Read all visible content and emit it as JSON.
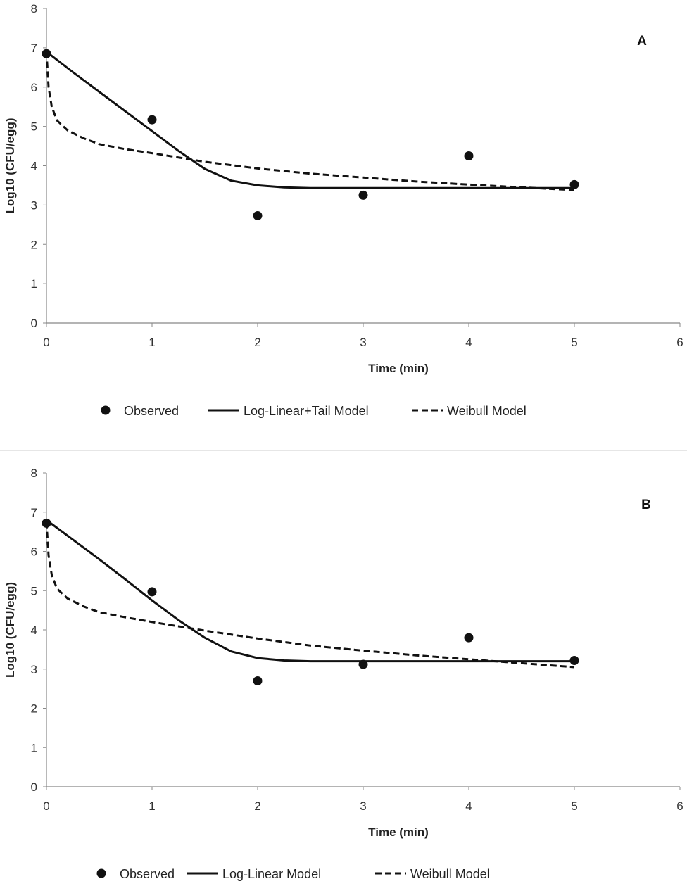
{
  "chart_data": [
    {
      "type": "scatter",
      "panel_label": "A",
      "xlabel": "Time (min)",
      "ylabel": "Log10 (CFU/egg)",
      "xlim": [
        0,
        6
      ],
      "ylim": [
        0,
        8
      ],
      "x_ticks": [
        0,
        1,
        2,
        3,
        4,
        5,
        6
      ],
      "y_ticks": [
        0,
        1,
        2,
        3,
        4,
        5,
        6,
        7,
        8
      ],
      "grid": false,
      "legend_position": "bottom",
      "series": [
        {
          "name": "Observed",
          "kind": "points",
          "x": [
            0,
            1,
            2,
            3,
            4,
            5
          ],
          "y": [
            6.85,
            5.17,
            2.73,
            3.25,
            4.25,
            3.52
          ]
        },
        {
          "name": "Log-Linear+Tail Model",
          "kind": "solid-line",
          "x": [
            0,
            0.25,
            0.5,
            0.75,
            1.0,
            1.25,
            1.5,
            1.75,
            2.0,
            2.25,
            2.5,
            3,
            4,
            5
          ],
          "y": [
            6.9,
            6.38,
            5.88,
            5.38,
            4.88,
            4.38,
            3.92,
            3.62,
            3.5,
            3.45,
            3.43,
            3.43,
            3.43,
            3.43
          ]
        },
        {
          "name": "Weibull Model",
          "kind": "dashed-line",
          "x": [
            0,
            0.02,
            0.05,
            0.1,
            0.2,
            0.35,
            0.5,
            0.75,
            1.0,
            1.5,
            2.0,
            2.5,
            3.0,
            3.5,
            4.0,
            4.5,
            5.0
          ],
          "y": [
            6.9,
            6.0,
            5.5,
            5.15,
            4.9,
            4.7,
            4.55,
            4.42,
            4.32,
            4.1,
            3.93,
            3.8,
            3.7,
            3.6,
            3.52,
            3.45,
            3.38
          ]
        }
      ]
    },
    {
      "type": "scatter",
      "panel_label": "B",
      "xlabel": "Time (min)",
      "ylabel": "Log10 (CFU/egg)",
      "xlim": [
        0,
        6
      ],
      "ylim": [
        0,
        8
      ],
      "x_ticks": [
        0,
        1,
        2,
        3,
        4,
        5,
        6
      ],
      "y_ticks": [
        0,
        1,
        2,
        3,
        4,
        5,
        6,
        7,
        8
      ],
      "grid": false,
      "legend_position": "bottom",
      "series": [
        {
          "name": "Observed",
          "kind": "points",
          "x": [
            0,
            1,
            2,
            3,
            4,
            5
          ],
          "y": [
            6.72,
            4.97,
            2.7,
            3.12,
            3.8,
            3.22
          ]
        },
        {
          "name": "Log-Linear Model",
          "kind": "solid-line",
          "x": [
            0,
            0.25,
            0.5,
            0.75,
            1.0,
            1.25,
            1.5,
            1.75,
            2.0,
            2.25,
            2.5,
            3,
            4,
            5
          ],
          "y": [
            6.8,
            6.3,
            5.8,
            5.28,
            4.75,
            4.25,
            3.8,
            3.45,
            3.28,
            3.22,
            3.2,
            3.2,
            3.2,
            3.2
          ]
        },
        {
          "name": "Weibull Model",
          "kind": "dashed-line",
          "x": [
            0,
            0.02,
            0.05,
            0.1,
            0.2,
            0.35,
            0.5,
            0.75,
            1.0,
            1.5,
            2.0,
            2.5,
            3.0,
            3.5,
            4.0,
            4.5,
            5.0
          ],
          "y": [
            6.75,
            5.9,
            5.4,
            5.05,
            4.8,
            4.6,
            4.45,
            4.32,
            4.2,
            3.98,
            3.78,
            3.6,
            3.47,
            3.35,
            3.25,
            3.15,
            3.05
          ]
        }
      ]
    }
  ]
}
